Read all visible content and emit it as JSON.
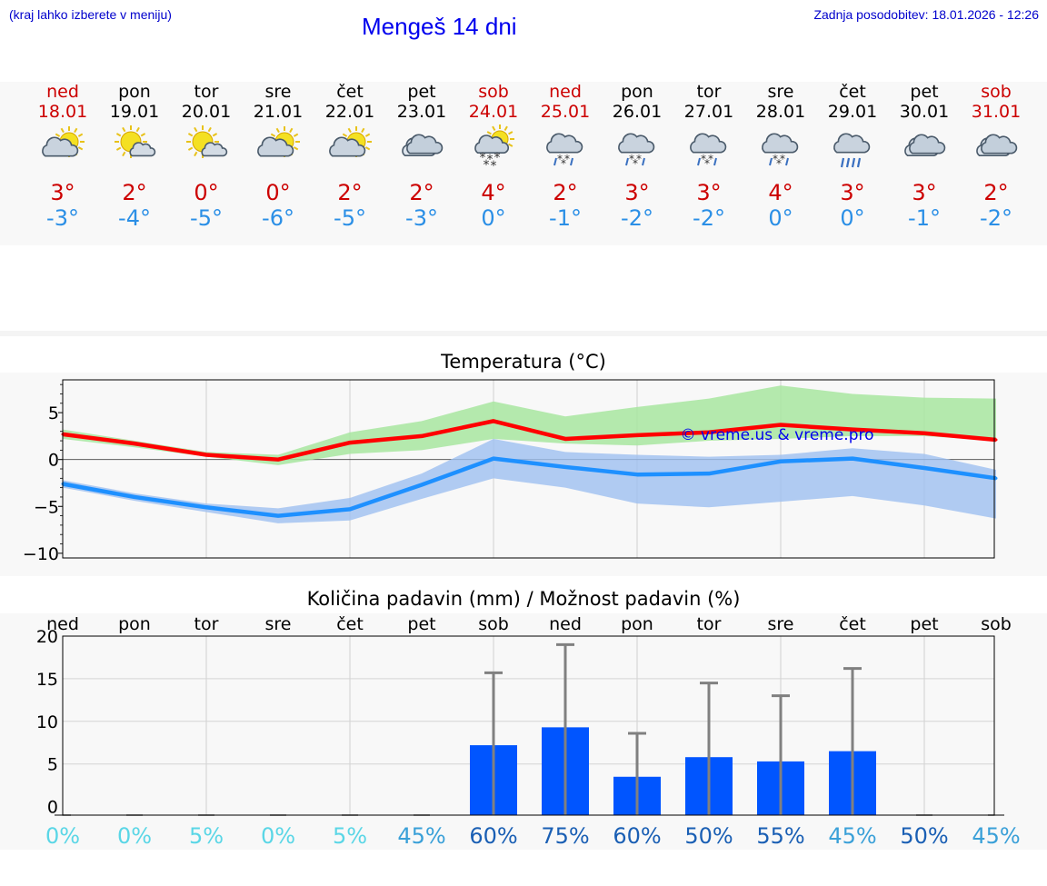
{
  "header": {
    "region_note": "(kraj lahko izberete v meniju)",
    "title": "Mengeš 14 dni",
    "updated": "Zadnja posodobitev: 18.01.2026 - 12:26"
  },
  "colors": {
    "weekend": "#cc0000",
    "max_temp": "#cc0000",
    "min_temp": "#2b8fe6",
    "max_line": "#ff0000",
    "min_line": "#1e90ff",
    "max_band": "#a8e6a0",
    "min_band": "#9dbff0",
    "bar": "#0055ff",
    "error_bar": "#808080",
    "watermark": "#0000ee"
  },
  "forecast": {
    "days": [
      {
        "dow": "ned",
        "date": "18.01",
        "weekend": true,
        "icon": "partly-cloudy-icon",
        "max": "3°",
        "min": "-3°"
      },
      {
        "dow": "pon",
        "date": "19.01",
        "weekend": false,
        "icon": "mostly-sunny-icon",
        "max": "2°",
        "min": "-4°"
      },
      {
        "dow": "tor",
        "date": "20.01",
        "weekend": false,
        "icon": "mostly-sunny-icon",
        "max": "0°",
        "min": "-5°"
      },
      {
        "dow": "sre",
        "date": "21.01",
        "weekend": false,
        "icon": "partly-cloudy-icon",
        "max": "0°",
        "min": "-6°"
      },
      {
        "dow": "čet",
        "date": "22.01",
        "weekend": false,
        "icon": "partly-cloudy-icon",
        "max": "2°",
        "min": "-5°"
      },
      {
        "dow": "pet",
        "date": "23.01",
        "weekend": false,
        "icon": "cloudy-icon",
        "max": "2°",
        "min": "-3°"
      },
      {
        "dow": "sob",
        "date": "24.01",
        "weekend": true,
        "icon": "sun-cloud-snow-icon",
        "max": "4°",
        "min": "0°"
      },
      {
        "dow": "ned",
        "date": "25.01",
        "weekend": true,
        "icon": "cloud-snow-icon",
        "max": "2°",
        "min": "-1°"
      },
      {
        "dow": "pon",
        "date": "26.01",
        "weekend": false,
        "icon": "cloud-snow-icon",
        "max": "3°",
        "min": "-2°"
      },
      {
        "dow": "tor",
        "date": "27.01",
        "weekend": false,
        "icon": "cloud-snow-icon",
        "max": "3°",
        "min": "-2°"
      },
      {
        "dow": "sre",
        "date": "28.01",
        "weekend": false,
        "icon": "cloud-snow-icon",
        "max": "4°",
        "min": "0°"
      },
      {
        "dow": "čet",
        "date": "29.01",
        "weekend": false,
        "icon": "cloud-rain-icon",
        "max": "3°",
        "min": "0°"
      },
      {
        "dow": "pet",
        "date": "30.01",
        "weekend": false,
        "icon": "cloudy-icon",
        "max": "3°",
        "min": "-1°"
      },
      {
        "dow": "sob",
        "date": "31.01",
        "weekend": true,
        "icon": "cloudy-icon",
        "max": "2°",
        "min": "-2°"
      }
    ]
  },
  "temperature_chart": {
    "title": "Temperatura (°C)",
    "watermark": "© vreme.us & vreme.pro"
  },
  "precip_chart": {
    "title": "Količina padavin (mm) / Možnost padavin (%)",
    "prob_colors": {
      "low": "#5ad6e6",
      "mid": "#3aa0d8",
      "high": "#1a5fb4"
    }
  },
  "chart_data": [
    {
      "type": "line",
      "title": "Temperatura (°C)",
      "categories": [
        "18.01",
        "19.01",
        "20.01",
        "21.01",
        "22.01",
        "23.01",
        "24.01",
        "25.01",
        "26.01",
        "27.01",
        "28.01",
        "29.01",
        "30.01",
        "31.01"
      ],
      "ylim": [
        -10.5,
        8.5
      ],
      "yticks": [
        5,
        0,
        -5,
        -10
      ],
      "series": [
        {
          "name": "max",
          "values": [
            2.7,
            1.7,
            0.5,
            0.0,
            1.8,
            2.5,
            4.1,
            2.2,
            2.6,
            2.9,
            3.7,
            3.2,
            2.8,
            2.1
          ]
        },
        {
          "name": "min",
          "values": [
            -2.6,
            -4.0,
            -5.1,
            -6.0,
            -5.3,
            -2.7,
            0.1,
            -0.8,
            -1.6,
            -1.5,
            -0.2,
            0.1,
            -0.9,
            -2.0
          ]
        },
        {
          "name": "max_band_high",
          "values": [
            3.2,
            2.0,
            0.8,
            0.5,
            2.9,
            4.1,
            6.2,
            4.6,
            5.6,
            6.5,
            7.9,
            7.0,
            6.6,
            6.5
          ]
        },
        {
          "name": "max_band_low",
          "values": [
            2.2,
            1.3,
            0.3,
            -0.6,
            0.6,
            1.0,
            2.2,
            1.7,
            1.5,
            2.0,
            2.2,
            2.5,
            2.5,
            2.0
          ]
        },
        {
          "name": "min_band_high",
          "values": [
            -2.2,
            -3.6,
            -4.7,
            -5.2,
            -4.1,
            -1.5,
            2.2,
            0.8,
            0.5,
            0.3,
            0.5,
            1.2,
            0.6,
            -1.1
          ]
        },
        {
          "name": "min_band_low",
          "values": [
            -3.0,
            -4.4,
            -5.6,
            -6.8,
            -6.5,
            -4.2,
            -2.0,
            -3.0,
            -4.7,
            -5.1,
            -4.5,
            -3.9,
            -4.9,
            -6.3
          ]
        }
      ]
    },
    {
      "type": "bar",
      "title": "Količina padavin (mm) / Možnost padavin (%)",
      "categories": [
        "ned",
        "pon",
        "tor",
        "sre",
        "čet",
        "pet",
        "sob",
        "ned",
        "pon",
        "tor",
        "sre",
        "čet",
        "pet",
        "sob"
      ],
      "ylim": [
        -1,
        20
      ],
      "yticks": [
        20,
        15,
        10,
        5,
        0
      ],
      "values": [
        0,
        0,
        0,
        0,
        0,
        0,
        7.2,
        9.3,
        3.5,
        5.8,
        5.3,
        6.5,
        0,
        0
      ],
      "error_high": [
        0,
        0,
        0,
        0,
        0,
        0,
        15.7,
        19.0,
        8.6,
        14.5,
        13.0,
        16.2,
        0,
        0
      ],
      "probability": [
        "0%",
        "0%",
        "5%",
        "0%",
        "5%",
        "45%",
        "60%",
        "75%",
        "60%",
        "50%",
        "55%",
        "45%",
        "50%",
        "45%"
      ]
    }
  ]
}
